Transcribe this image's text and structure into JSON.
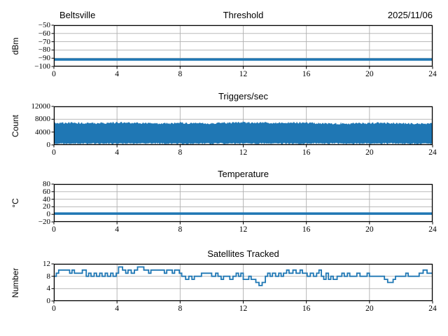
{
  "figure": {
    "station": "Beltsville",
    "date": "2025/11/06",
    "background": "#ffffff"
  },
  "colors": {
    "series_blue": "#1f77b4",
    "grid_gray": "#b0b0b0",
    "axis_black": "#000000",
    "text_black": "#000000"
  },
  "x_axis": {
    "min": 0,
    "max": 24,
    "ticks": [
      0,
      4,
      8,
      12,
      16,
      20,
      24
    ]
  },
  "chart_data": [
    {
      "type": "line",
      "subtype": "constant",
      "title": "Threshold",
      "ylabel": "dBm",
      "ylim": [
        -100,
        -50
      ],
      "yticks": [
        -100,
        -90,
        -80,
        -70,
        -60,
        -50
      ],
      "x_range": [
        0,
        24
      ],
      "value": -91.5,
      "line_width": 3.5,
      "grid": true
    },
    {
      "type": "area",
      "subtype": "noise_band",
      "title": "Triggers/sec",
      "ylabel": "Count",
      "ylim": [
        0,
        12000
      ],
      "yticks": [
        0,
        4000,
        8000,
        12000
      ],
      "x_range": [
        0,
        24
      ],
      "band_low_mean": 420,
      "band_low_jitter": 230,
      "band_high_jitter": 300,
      "spike_chance": 0.06,
      "spike_size": 280,
      "high_envelope_hourly": [
        6800,
        6850,
        6750,
        6800,
        6900,
        6850,
        6700,
        6650,
        6800,
        6750,
        6700,
        6850,
        6950,
        6900,
        6800,
        7000,
        6850,
        6700,
        6600,
        6650,
        6750,
        6850,
        6700,
        6550,
        6600
      ],
      "grid": true
    },
    {
      "type": "line",
      "subtype": "constant",
      "title": "Temperature",
      "ylabel": "°C",
      "ylim": [
        -20,
        80
      ],
      "yticks": [
        -20,
        0,
        20,
        40,
        60,
        80
      ],
      "x_range": [
        0,
        24
      ],
      "value": 2,
      "line_width": 3.5,
      "grid": true
    },
    {
      "type": "line",
      "subtype": "step",
      "title": "Satellites Tracked",
      "ylabel": "Number",
      "ylim": [
        0,
        12
      ],
      "yticks": [
        0,
        4,
        8,
        12
      ],
      "x_range": [
        0,
        24
      ],
      "line_width": 1.8,
      "grid": true,
      "points": [
        [
          0,
          8
        ],
        [
          0.15,
          9
        ],
        [
          0.3,
          10
        ],
        [
          1.0,
          9
        ],
        [
          1.15,
          10
        ],
        [
          1.3,
          9
        ],
        [
          1.8,
          10
        ],
        [
          2.05,
          8
        ],
        [
          2.2,
          9
        ],
        [
          2.35,
          8
        ],
        [
          2.55,
          9
        ],
        [
          2.7,
          8
        ],
        [
          2.9,
          9
        ],
        [
          3.05,
          8
        ],
        [
          3.25,
          9
        ],
        [
          3.4,
          8
        ],
        [
          3.6,
          9
        ],
        [
          3.75,
          8
        ],
        [
          3.95,
          9
        ],
        [
          4.1,
          11
        ],
        [
          4.35,
          10
        ],
        [
          4.55,
          9
        ],
        [
          4.7,
          10
        ],
        [
          4.9,
          9
        ],
        [
          5.1,
          10
        ],
        [
          5.3,
          11
        ],
        [
          5.7,
          10
        ],
        [
          6.0,
          9
        ],
        [
          6.15,
          10
        ],
        [
          7.0,
          9
        ],
        [
          7.15,
          10
        ],
        [
          7.5,
          9
        ],
        [
          7.65,
          10
        ],
        [
          7.95,
          9
        ],
        [
          8.1,
          8
        ],
        [
          8.35,
          7
        ],
        [
          8.55,
          8
        ],
        [
          8.75,
          7
        ],
        [
          8.9,
          8
        ],
        [
          9.35,
          9
        ],
        [
          10.0,
          8
        ],
        [
          10.25,
          9
        ],
        [
          10.4,
          8
        ],
        [
          10.6,
          7
        ],
        [
          10.75,
          8
        ],
        [
          11.15,
          7
        ],
        [
          11.35,
          8
        ],
        [
          11.55,
          9
        ],
        [
          11.7,
          8
        ],
        [
          11.85,
          9
        ],
        [
          12.0,
          7
        ],
        [
          12.35,
          8
        ],
        [
          12.5,
          7
        ],
        [
          12.8,
          6
        ],
        [
          13.0,
          5
        ],
        [
          13.2,
          6
        ],
        [
          13.4,
          8
        ],
        [
          13.55,
          9
        ],
        [
          13.7,
          8
        ],
        [
          13.85,
          9
        ],
        [
          14.05,
          8
        ],
        [
          14.25,
          9
        ],
        [
          14.4,
          8
        ],
        [
          14.55,
          9
        ],
        [
          14.75,
          10
        ],
        [
          14.9,
          9
        ],
        [
          15.15,
          10
        ],
        [
          15.35,
          9
        ],
        [
          15.6,
          10
        ],
        [
          15.75,
          9
        ],
        [
          16.05,
          8
        ],
        [
          16.25,
          9
        ],
        [
          16.45,
          8
        ],
        [
          16.65,
          9
        ],
        [
          16.8,
          10
        ],
        [
          16.95,
          8
        ],
        [
          17.1,
          7
        ],
        [
          17.25,
          9
        ],
        [
          17.4,
          7
        ],
        [
          17.55,
          8
        ],
        [
          17.7,
          7
        ],
        [
          17.95,
          8
        ],
        [
          18.25,
          9
        ],
        [
          18.4,
          8
        ],
        [
          18.6,
          9
        ],
        [
          18.75,
          8
        ],
        [
          19.2,
          9
        ],
        [
          19.4,
          8
        ],
        [
          19.85,
          9
        ],
        [
          20.0,
          8
        ],
        [
          20.95,
          7
        ],
        [
          21.15,
          6
        ],
        [
          21.5,
          7
        ],
        [
          21.65,
          8
        ],
        [
          22.3,
          9
        ],
        [
          22.45,
          8
        ],
        [
          23.15,
          9
        ],
        [
          23.4,
          10
        ],
        [
          23.65,
          9
        ],
        [
          24,
          9
        ]
      ]
    }
  ]
}
